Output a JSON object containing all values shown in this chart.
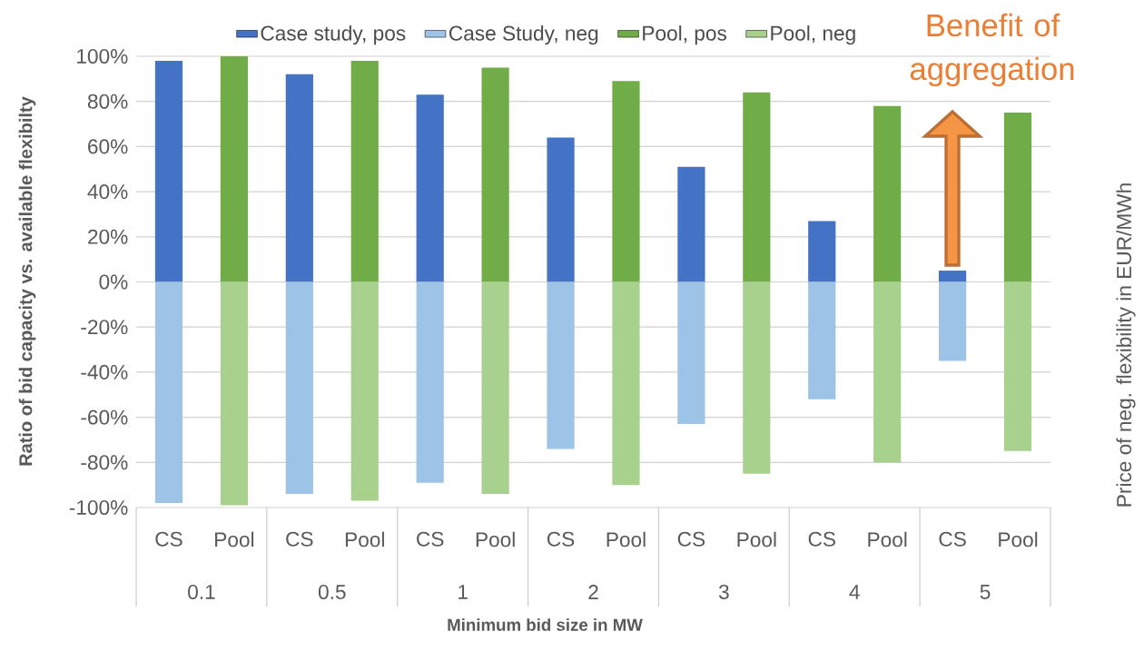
{
  "chart_data": {
    "type": "bar",
    "xlabel": "Minimum bid size in MW",
    "ylabel": "Ratio of bid capacity vs. available flexibilty",
    "y2label": "Price of neg. flexibility in EUR/MWh",
    "categories": [
      "CS",
      "Pool",
      "CS",
      "Pool",
      "CS",
      "Pool",
      "CS",
      "Pool",
      "CS",
      "Pool",
      "CS",
      "Pool",
      "CS",
      "Pool"
    ],
    "series": [
      {
        "name": "Case study, pos",
        "color": "#4472c4",
        "values": [
          98,
          null,
          92,
          null,
          83,
          null,
          64,
          null,
          51,
          null,
          27,
          null,
          5,
          null
        ]
      },
      {
        "name": "Case Study, neg",
        "color": "#9dc3e6",
        "values": [
          -98,
          null,
          -94,
          null,
          -89,
          null,
          -74,
          null,
          -63,
          null,
          -52,
          null,
          -35,
          null
        ]
      },
      {
        "name": "Pool, pos",
        "color": "#70ad47",
        "values": [
          null,
          100,
          null,
          98,
          null,
          95,
          null,
          89,
          null,
          84,
          null,
          78,
          null,
          75
        ]
      },
      {
        "name": "Pool, neg",
        "color": "#a9d18e",
        "values": [
          null,
          -99,
          null,
          -97,
          null,
          -94,
          null,
          -90,
          null,
          -85,
          null,
          -80,
          null,
          -75
        ]
      }
    ],
    "ylim": [
      -100,
      100
    ],
    "yticks": [
      {
        "value": -100,
        "label": "-100%"
      },
      {
        "value": -80,
        "label": "-80%"
      },
      {
        "value": -60,
        "label": "-60%"
      },
      {
        "value": -40,
        "label": "-40%"
      },
      {
        "value": -20,
        "label": "-20%"
      },
      {
        "value": 0,
        "label": "0%"
      },
      {
        "value": 20,
        "label": "20%"
      },
      {
        "value": 40,
        "label": "40%"
      },
      {
        "value": 60,
        "label": "60%"
      },
      {
        "value": 80,
        "label": "80%"
      },
      {
        "value": 100,
        "label": "100%"
      }
    ],
    "grid": "y",
    "legend": "top",
    "stacked": true,
    "annotations": [
      "0.1",
      "0.5",
      "1",
      "2",
      "3",
      "4",
      "5",
      "Benefit of aggregation"
    ]
  }
}
